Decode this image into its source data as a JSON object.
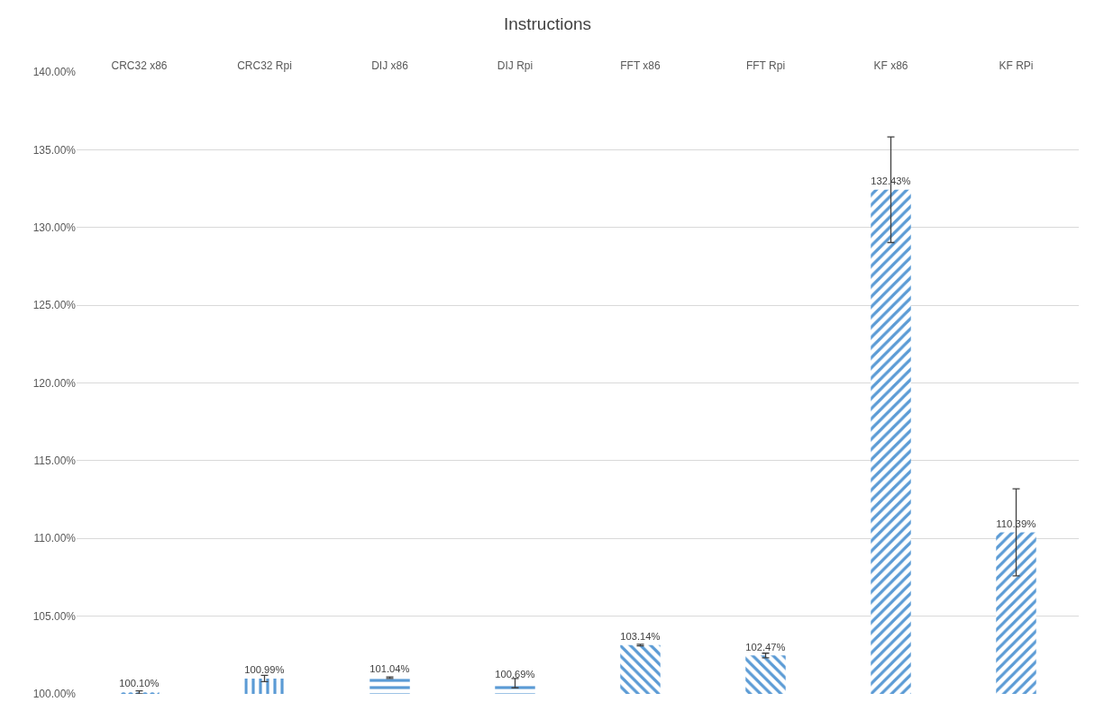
{
  "chart_data": {
    "type": "bar",
    "title": "Instructions",
    "categories": [
      "CRC32 x86",
      "CRC32 Rpi",
      "DIJ x86",
      "DIJ Rpi",
      "FFT x86",
      "FFT Rpi",
      "KF x86",
      "KF RPi"
    ],
    "values": [
      100.1,
      100.99,
      101.04,
      100.69,
      103.14,
      102.47,
      132.43,
      110.39
    ],
    "value_labels": [
      "100.10%",
      "100.99%",
      "101.04%",
      "100.69%",
      "103.14%",
      "102.47%",
      "132.43%",
      "110.39%"
    ],
    "errors": [
      0.1,
      0.2,
      0.05,
      0.3,
      0.05,
      0.15,
      3.4,
      2.8
    ],
    "color": "#5b9bd5",
    "ylim": [
      100,
      140
    ],
    "yticks": [
      {
        "value": 100,
        "label": "100.00%"
      },
      {
        "value": 105,
        "label": "105.00%"
      },
      {
        "value": 110,
        "label": "110.00%"
      },
      {
        "value": 115,
        "label": "115.00%"
      },
      {
        "value": 120,
        "label": "120.00%"
      },
      {
        "value": 125,
        "label": "125.00%"
      },
      {
        "value": 130,
        "label": "130.00%"
      },
      {
        "value": 135,
        "label": "135.00%"
      },
      {
        "value": 140,
        "label": "140.00%"
      }
    ],
    "grid": "y"
  }
}
